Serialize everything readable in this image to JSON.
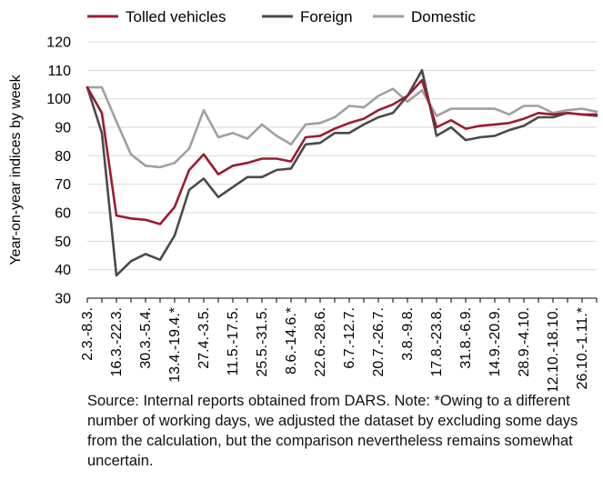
{
  "chart_data": {
    "type": "line",
    "ylabel": "Year-on-year indices by week",
    "ylim": [
      30,
      120
    ],
    "yticks": [
      30,
      40,
      50,
      60,
      70,
      80,
      90,
      100,
      110,
      120
    ],
    "grid": true,
    "legend_position": "top",
    "categories": [
      "2.3.-8.3.",
      "16.3.-22.3.",
      "30.3.-5.4.",
      "13.4.-19.4.*",
      "27.4.-3.5.",
      "11.5.-17.5.",
      "25.5.-31.5.",
      "8.6.-14.6.*",
      "22.6.-28.6.",
      "6.7.-12.7.",
      "20.7.-26.7.",
      "3.8.-9.8.",
      "17.8.-23.8.",
      "31.8.-6.9.",
      "14.9.-20.9.",
      "28.9.-4.10.",
      "12.10.-18.10.",
      "26.10.-1.11.*"
    ],
    "x": [
      1,
      2,
      3,
      4,
      5,
      6,
      7,
      8,
      9,
      10,
      11,
      12,
      13,
      14,
      15,
      16,
      17,
      18,
      19,
      20,
      21,
      22,
      23,
      24,
      25,
      26,
      27,
      28,
      29,
      30,
      31,
      32,
      33,
      34,
      35,
      36
    ],
    "series": [
      {
        "name": "Tolled vehicles",
        "color": "#9b1b30",
        "values": [
          104,
          95,
          59,
          58,
          57.5,
          56,
          62,
          75,
          80.5,
          73.5,
          76.5,
          77.5,
          79,
          79,
          78,
          86.5,
          87,
          89.5,
          91.5,
          93,
          96,
          98,
          101,
          106.5,
          90,
          92.5,
          89.5,
          90.5,
          91,
          91.5,
          93,
          95,
          94.5,
          95,
          94.5,
          94.5
        ]
      },
      {
        "name": "Foreign",
        "color": "#4a4a4a",
        "values": [
          104,
          88,
          38,
          43,
          45.5,
          43.5,
          52,
          68,
          72,
          65.5,
          69,
          72.5,
          72.5,
          75,
          75.5,
          84,
          84.5,
          88,
          88,
          91,
          93.5,
          95,
          101,
          110,
          87,
          90,
          85.5,
          86.5,
          87,
          89,
          90.5,
          93.5,
          93.5,
          95,
          94.5,
          94
        ]
      },
      {
        "name": "Domestic",
        "color": "#a0a0a0",
        "values": [
          104,
          104,
          92,
          80.5,
          76.5,
          76,
          77.5,
          82.5,
          96,
          86.5,
          88,
          86,
          91,
          87,
          84,
          91,
          91.5,
          93.5,
          97.5,
          97,
          101,
          103.5,
          99,
          103,
          94,
          96.5,
          96.5,
          96.5,
          96.5,
          94.5,
          97.5,
          97.5,
          95,
          96,
          96.5,
          95.5
        ]
      }
    ]
  },
  "source_note": "Source: Internal reports obtained from DARS. Note: *Owing to a different number of working days, we adjusted the dataset by excluding some days from the calculation, but the comparison nevertheless remains somewhat uncertain."
}
